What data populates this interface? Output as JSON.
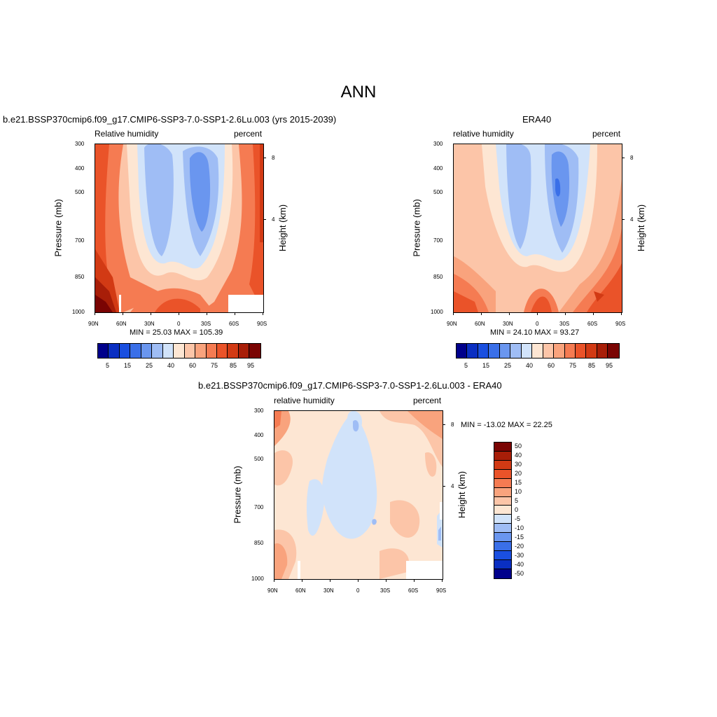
{
  "figure": {
    "title": "ANN"
  },
  "palette_main": [
    "#00008b",
    "#0a2fc2",
    "#1a4fe0",
    "#3a6fe8",
    "#6a96ef",
    "#9fbdf5",
    "#d1e3fa",
    "#fde6d3",
    "#fcc5a8",
    "#f9a37d",
    "#f57b52",
    "#ea5329",
    "#d23a14",
    "#a81e08",
    "#7a0403"
  ],
  "palette_diff": [
    "#7a0403",
    "#a81e08",
    "#d23a14",
    "#ea5329",
    "#f57b52",
    "#f9a37d",
    "#fcc5a8",
    "#fde6d3",
    "#d1e3fa",
    "#9fbdf5",
    "#6a96ef",
    "#3a6fe8",
    "#1a4fe0",
    "#0a2fc2",
    "#00008b"
  ],
  "panels": {
    "model": {
      "header": "b.e21.BSSP370cmip6.f09_g17.CMIP6-SSP3-7.0-SSP1-2.6Lu.003 (yrs 2015-2039)",
      "left_label": "Relative humidity",
      "right_label": "percent",
      "minmax": "MIN =  25.03  MAX = 105.39"
    },
    "obs": {
      "header": "ERA40",
      "left_label": "relative humidity",
      "right_label": "percent",
      "minmax": "MIN =  24.10  MAX =  93.27"
    },
    "diff": {
      "header": "b.e21.BSSP370cmip6.f09_g17.CMIP6-SSP3-7.0-SSP1-2.6Lu.003 - ERA40",
      "left_label": "relative humidity",
      "right_label": "percent",
      "minmax": "MIN = -13.02  MAX =  22.25"
    }
  },
  "axes": {
    "ylabel": "Pressure (mb)",
    "ylabel_right": "Height (km)",
    "pressure_ticks": [
      "300",
      "400",
      "500",
      "700",
      "850",
      "1000"
    ],
    "height_ticks": [
      "8",
      "4"
    ],
    "lat_ticks": [
      "90N",
      "60N",
      "30N",
      "0",
      "30S",
      "60S",
      "90S"
    ]
  },
  "colorbar_main_labels": [
    "5",
    "15",
    "25",
    "40",
    "60",
    "75",
    "85",
    "95"
  ],
  "colorbar_diff_labels": [
    "50",
    "40",
    "30",
    "20",
    "15",
    "10",
    "5",
    "0",
    "-5",
    "-10",
    "-15",
    "-20",
    "-30",
    "-40",
    "-50"
  ],
  "chart_data": [
    {
      "type": "heatmap",
      "title": "b.e21.BSSP370cmip6.f09_g17.CMIP6-SSP3-7.0-SSP1-2.6Lu.003 (yrs 2015-2039)",
      "variable": "Relative humidity",
      "units": "percent",
      "xlabel": "",
      "ylabel": "Pressure (mb)",
      "ylabel_right": "Height (km)",
      "x_ticks": [
        "90N",
        "60N",
        "30N",
        "0",
        "30S",
        "60S",
        "90S"
      ],
      "y_ticks": [
        300,
        400,
        500,
        700,
        850,
        1000
      ],
      "y_scale": "log",
      "ylim": [
        1000,
        300
      ],
      "min": 25.03,
      "max": 105.39,
      "contour_levels": [
        5,
        10,
        15,
        20,
        25,
        30,
        40,
        50,
        60,
        70,
        75,
        80,
        85,
        90,
        95
      ]
    },
    {
      "type": "heatmap",
      "title": "ERA40",
      "variable": "relative humidity",
      "units": "percent",
      "ylabel": "Pressure (mb)",
      "ylabel_right": "Height (km)",
      "x_ticks": [
        "90N",
        "60N",
        "30N",
        "0",
        "30S",
        "60S",
        "90S"
      ],
      "y_ticks": [
        300,
        400,
        500,
        700,
        850,
        1000
      ],
      "y_scale": "log",
      "ylim": [
        1000,
        300
      ],
      "min": 24.1,
      "max": 93.27,
      "contour_levels": [
        5,
        10,
        15,
        20,
        25,
        30,
        40,
        50,
        60,
        70,
        75,
        80,
        85,
        90,
        95
      ]
    },
    {
      "type": "heatmap",
      "title": "b.e21.BSSP370cmip6.f09_g17.CMIP6-SSP3-7.0-SSP1-2.6Lu.003 - ERA40",
      "variable": "relative humidity",
      "units": "percent",
      "ylabel": "Pressure (mb)",
      "ylabel_right": "Height (km)",
      "x_ticks": [
        "90N",
        "60N",
        "30N",
        "0",
        "30S",
        "60S",
        "90S"
      ],
      "y_ticks": [
        300,
        400,
        500,
        700,
        850,
        1000
      ],
      "y_scale": "log",
      "ylim": [
        1000,
        300
      ],
      "min": -13.02,
      "max": 22.25,
      "contour_levels": [
        -50,
        -40,
        -30,
        -20,
        -15,
        -10,
        -5,
        0,
        5,
        10,
        15,
        20,
        30,
        40,
        50
      ]
    }
  ]
}
